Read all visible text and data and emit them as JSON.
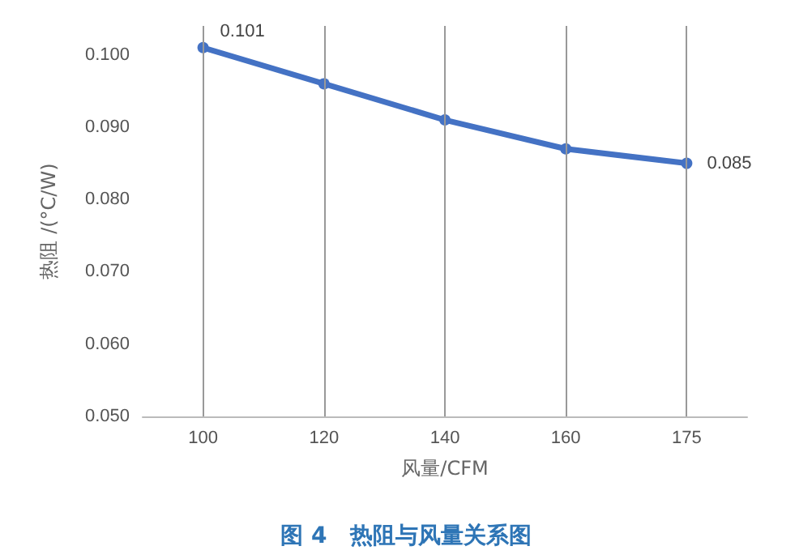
{
  "chart_data": {
    "type": "line",
    "title": "图 4　热阻与风量关系图",
    "xlabel": "风量/CFM",
    "ylabel": "热阻 /(°C/W)",
    "categories": [
      "100",
      "120",
      "140",
      "160",
      "175"
    ],
    "series": [
      {
        "color": "#4472c4",
        "values": [
          0.101,
          0.096,
          0.091,
          0.087,
          0.085
        ],
        "value_labels": [
          "0.101",
          null,
          null,
          null,
          "0.085"
        ]
      }
    ],
    "ylim": [
      0.05,
      0.104
    ],
    "yticks": [
      {
        "value": 0.05,
        "label": "0.050"
      },
      {
        "value": 0.06,
        "label": "0.060"
      },
      {
        "value": 0.07,
        "label": "0.070"
      },
      {
        "value": 0.08,
        "label": "0.080"
      },
      {
        "value": 0.09,
        "label": "0.090"
      },
      {
        "value": 0.1,
        "label": "0.100"
      }
    ],
    "grid": "x",
    "marker": "circle",
    "line_style": "solid"
  }
}
